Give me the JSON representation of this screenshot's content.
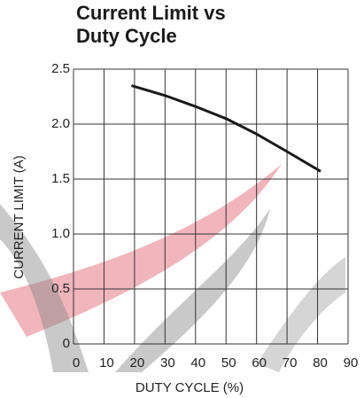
{
  "chart_data": {
    "type": "line",
    "title": "Current Limit vs Duty Cycle",
    "x_label": "DUTY CYCLE (%)",
    "y_label": "CURRENT LIMIT (A)",
    "x": [
      19,
      30,
      40,
      50,
      60,
      70,
      81
    ],
    "series": [
      {
        "color": "#1a1a1a",
        "values": [
          2.35,
          2.26,
          2.16,
          2.05,
          1.91,
          1.75,
          1.57
        ]
      }
    ],
    "xlim": [
      0,
      90
    ],
    "xticks": [
      0,
      10,
      20,
      30,
      40,
      50,
      60,
      70,
      80,
      90
    ],
    "ylim": [
      0,
      2.5
    ],
    "yticks": [
      0,
      0.5,
      {
        "value": 1,
        "label": "1.0"
      },
      1.5,
      {
        "value": 2,
        "label": "2.0"
      },
      2.5
    ],
    "grid": true
  }
}
